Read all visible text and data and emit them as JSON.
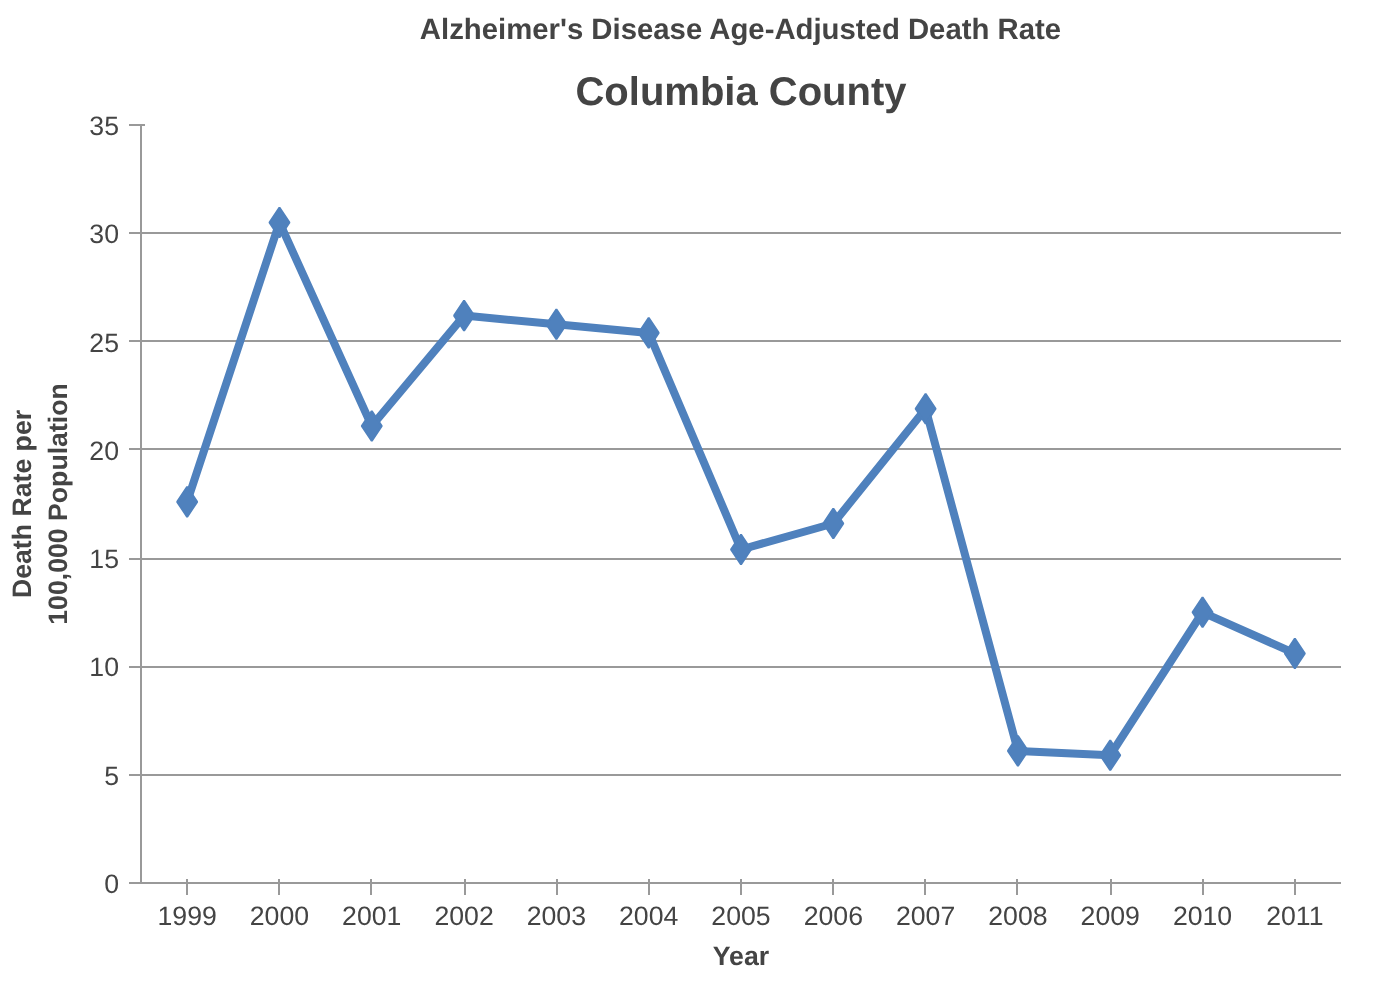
{
  "chart_data": {
    "type": "line",
    "title": "Alzheimer's Disease Age-Adjusted Death Rate",
    "subtitle": "Columbia County",
    "xlabel": "Year",
    "ylabel": "Death Rate per\n100,000 Population",
    "categories": [
      "1999",
      "2000",
      "2001",
      "2002",
      "2003",
      "2004",
      "2005",
      "2006",
      "2007",
      "2008",
      "2009",
      "2010",
      "2011"
    ],
    "values": [
      17.6,
      30.5,
      21.1,
      26.2,
      25.8,
      25.4,
      15.4,
      16.6,
      21.9,
      6.1,
      5.9,
      12.5,
      10.6
    ],
    "color": "#4f81bd",
    "ylim": [
      0,
      35
    ],
    "yticks": [
      0,
      5,
      10,
      15,
      20,
      25,
      30,
      35
    ],
    "grid": "y",
    "marker": "diamond",
    "line_style": "solid"
  }
}
